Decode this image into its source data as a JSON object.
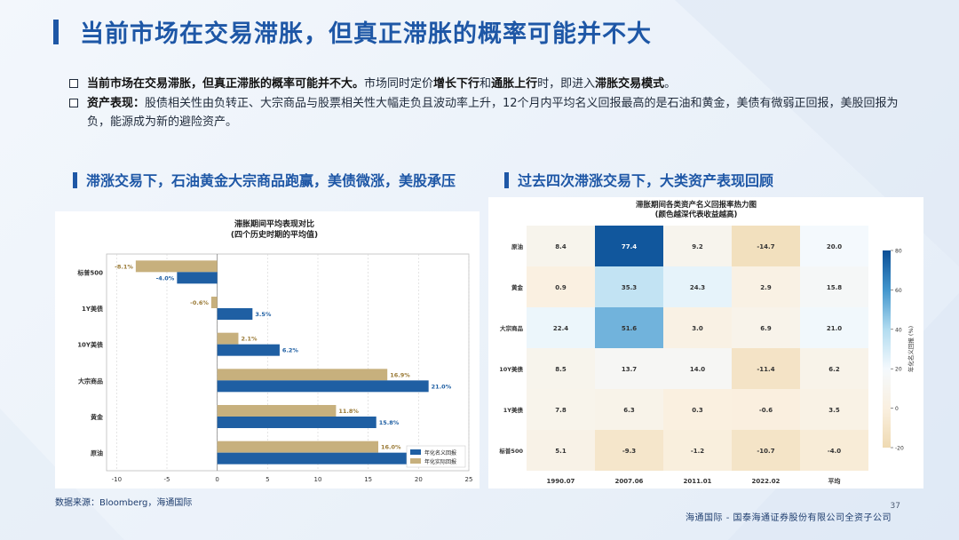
{
  "title": "当前市场在交易滞胀，但真正滞胀的概率可能并不大",
  "bullets": [
    {
      "bold": "当前市场在交易滞胀，但真正滞胀的概率可能并不大。",
      "t1": "市场同时定价",
      "b2": "增长下行",
      "t2": "和",
      "b3": "通胀上行",
      "t3": "时，即进入",
      "b4": "滞胀交易模式",
      "t4": "。"
    },
    {
      "bold": "资产表现：",
      "text": "股债相关性由负转正、大宗商品与股票相关性大幅走负且波动率上升，12个月内平均名义回报最高的是石油和黄金，美债有微弱正回报，美股回报为负，能源成为新的避险资产。"
    }
  ],
  "section_left": "滞涨交易下，石油黄金大宗商品跑赢，美债微涨，美股承压",
  "section_right": "过去四次滞涨交易下，大类资产表现回顾",
  "colors": {
    "primary": "#1e57a6",
    "nominal": "#1f5fa3",
    "real": "#c7b07d"
  },
  "chart_data": [
    {
      "type": "bar",
      "orientation": "horizontal",
      "title": "滞胀期间平均表现对比",
      "subtitle": "(四个历史时期的平均值)",
      "categories": [
        "标普500",
        "1Y美债",
        "10Y美债",
        "大宗商品",
        "黄金",
        "原油"
      ],
      "series": [
        {
          "name": "年化实际回报",
          "values": [
            -8.1,
            -0.6,
            2.1,
            16.9,
            11.8,
            16.0
          ],
          "labels": [
            "-8.1%",
            "-0.6%",
            "2.1%",
            "16.9%",
            "11.8%",
            "16.0%"
          ]
        },
        {
          "name": "年化名义回报",
          "values": [
            -4.0,
            3.5,
            6.2,
            21.0,
            15.8,
            20.0
          ],
          "labels": [
            "-4.0%",
            "3.5%",
            "6.2%",
            "21.0%",
            "15.8%",
            ""
          ]
        }
      ],
      "xlim": [
        -11,
        25
      ],
      "xticks": [
        "-10",
        "-5",
        "0",
        "5",
        "10",
        "15",
        "20",
        "25"
      ],
      "legend": [
        "年化名义回报",
        "年化实际回报"
      ],
      "legend_position": "bottom-right"
    },
    {
      "type": "heatmap",
      "title": "滞胀期间各类资产名义回报率热力图",
      "subtitle": "(颜色越深代表收益越高)",
      "rows": [
        "原油",
        "黄金",
        "大宗商品",
        "10Y美债",
        "1Y美债",
        "标普500"
      ],
      "cols": [
        "1990.07",
        "2007.06",
        "2011.01",
        "2022.02",
        "平均"
      ],
      "values": [
        [
          8.4,
          77.4,
          9.2,
          -14.7,
          20.0
        ],
        [
          0.9,
          35.3,
          24.3,
          2.9,
          15.8
        ],
        [
          22.4,
          51.6,
          3.0,
          6.9,
          21.0
        ],
        [
          8.5,
          13.7,
          14.0,
          -11.4,
          6.2
        ],
        [
          7.8,
          6.3,
          0.3,
          -0.6,
          3.5
        ],
        [
          5.1,
          -9.3,
          -1.2,
          -10.7,
          -4.0
        ]
      ],
      "cell_labels": [
        [
          "8.4",
          "77.4",
          "9.2",
          "-14.7",
          "20.0"
        ],
        [
          "0.9",
          "35.3",
          "24.3",
          "2.9",
          "15.8"
        ],
        [
          "22.4",
          "51.6",
          "3.0",
          "6.9",
          "21.0"
        ],
        [
          "8.5",
          "13.7",
          "14.0",
          "-11.4",
          "6.2"
        ],
        [
          "7.8",
          "6.3",
          "0.3",
          "-0.6",
          "3.5"
        ],
        [
          "5.1",
          "-9.3",
          "-1.2",
          "-10.7",
          "-4.0"
        ]
      ],
      "vmin": -20,
      "vmax": 80,
      "colorbar_label": "年化名义回报 (%)",
      "colorbar_ticks": [
        "-20",
        "0",
        "20",
        "40",
        "60",
        "80"
      ]
    }
  ],
  "source": "数据来源：Bloomberg，海通国际",
  "footer": "海通国际 - 国泰海通证券股份有限公司全资子公司",
  "page_number": "37"
}
